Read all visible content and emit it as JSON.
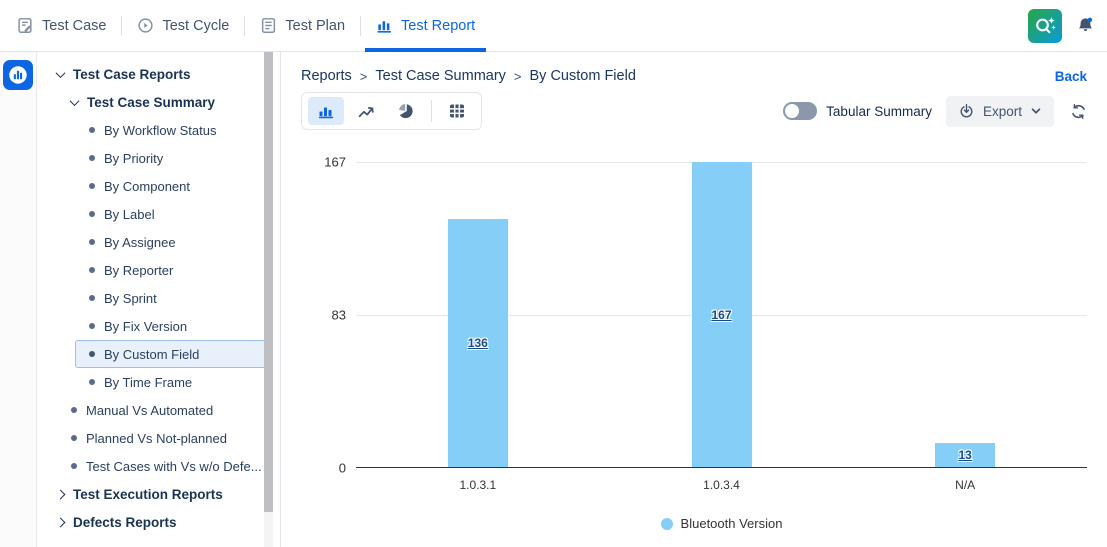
{
  "navbar": {
    "items": [
      {
        "label": "Test Case",
        "icon": "test-case-icon",
        "active": false
      },
      {
        "label": "Test Cycle",
        "icon": "test-cycle-icon",
        "active": false
      },
      {
        "label": "Test Plan",
        "icon": "test-plan-icon",
        "active": false
      },
      {
        "label": "Test Report",
        "icon": "test-report-icon",
        "active": true
      }
    ],
    "right_icons": [
      "ai-search-icon",
      "notification-bell-icon"
    ]
  },
  "sidebar": {
    "rail_icon": "reports-module-icon",
    "items": [
      {
        "label": "Test Case Reports",
        "level": 0,
        "type": "group",
        "expanded": true
      },
      {
        "label": "Test Case Summary",
        "level": 1,
        "type": "group",
        "expanded": true
      },
      {
        "label": "By Workflow Status",
        "level": 2,
        "type": "leaf"
      },
      {
        "label": "By Priority",
        "level": 2,
        "type": "leaf"
      },
      {
        "label": "By Component",
        "level": 2,
        "type": "leaf"
      },
      {
        "label": "By Label",
        "level": 2,
        "type": "leaf"
      },
      {
        "label": "By Assignee",
        "level": 2,
        "type": "leaf"
      },
      {
        "label": "By Reporter",
        "level": 2,
        "type": "leaf"
      },
      {
        "label": "By Sprint",
        "level": 2,
        "type": "leaf"
      },
      {
        "label": "By Fix Version",
        "level": 2,
        "type": "leaf"
      },
      {
        "label": "By Custom Field",
        "level": 2,
        "type": "leaf",
        "selected": true
      },
      {
        "label": "By Time Frame",
        "level": 2,
        "type": "leaf"
      },
      {
        "label": "Manual Vs Automated",
        "level": 1,
        "type": "leaf"
      },
      {
        "label": "Planned Vs Not-planned",
        "level": 1,
        "type": "leaf"
      },
      {
        "label": "Test Cases with Vs w/o Defe...",
        "level": 1,
        "type": "leaf"
      },
      {
        "label": "Test Execution Reports",
        "level": 0,
        "type": "group",
        "expanded": false
      },
      {
        "label": "Defects Reports",
        "level": 0,
        "type": "group",
        "expanded": false
      }
    ]
  },
  "main": {
    "breadcrumb": {
      "items": [
        "Reports",
        "Test Case Summary",
        "By Custom Field"
      ],
      "separator": ">"
    },
    "back_label": "Back",
    "toolbar": {
      "chart_type_icons": [
        "bar-chart-icon",
        "line-chart-icon",
        "pie-chart-icon",
        "table-icon"
      ],
      "selected_chart_type": "bar",
      "tabular_summary_label": "Tabular Summary",
      "tabular_summary_on": false,
      "export_label": "Export",
      "refresh_icon": "refresh-icon"
    }
  },
  "chart_data": {
    "type": "bar",
    "categories": [
      "1.0.3.1",
      "1.0.3.4",
      "N/A"
    ],
    "values": [
      136,
      167,
      13
    ],
    "series_name": "Bluetooth Version",
    "title": "",
    "xlabel": "",
    "ylabel": "",
    "ylim": [
      0,
      167
    ],
    "yticks": [
      167,
      83,
      0
    ],
    "grid": true,
    "legend_position": "bottom",
    "bar_color": "#85CEF7",
    "value_label_style": "underlined-link"
  },
  "colors": {
    "accent_blue": "#0C66E4",
    "bar_fill": "#85CEF7",
    "selected_item_bg": "#E8F1FB",
    "selected_item_border": "#9FBEE5",
    "gridline": "#E6E6E6",
    "axis": "#333333",
    "value_link": "#174A8C"
  }
}
